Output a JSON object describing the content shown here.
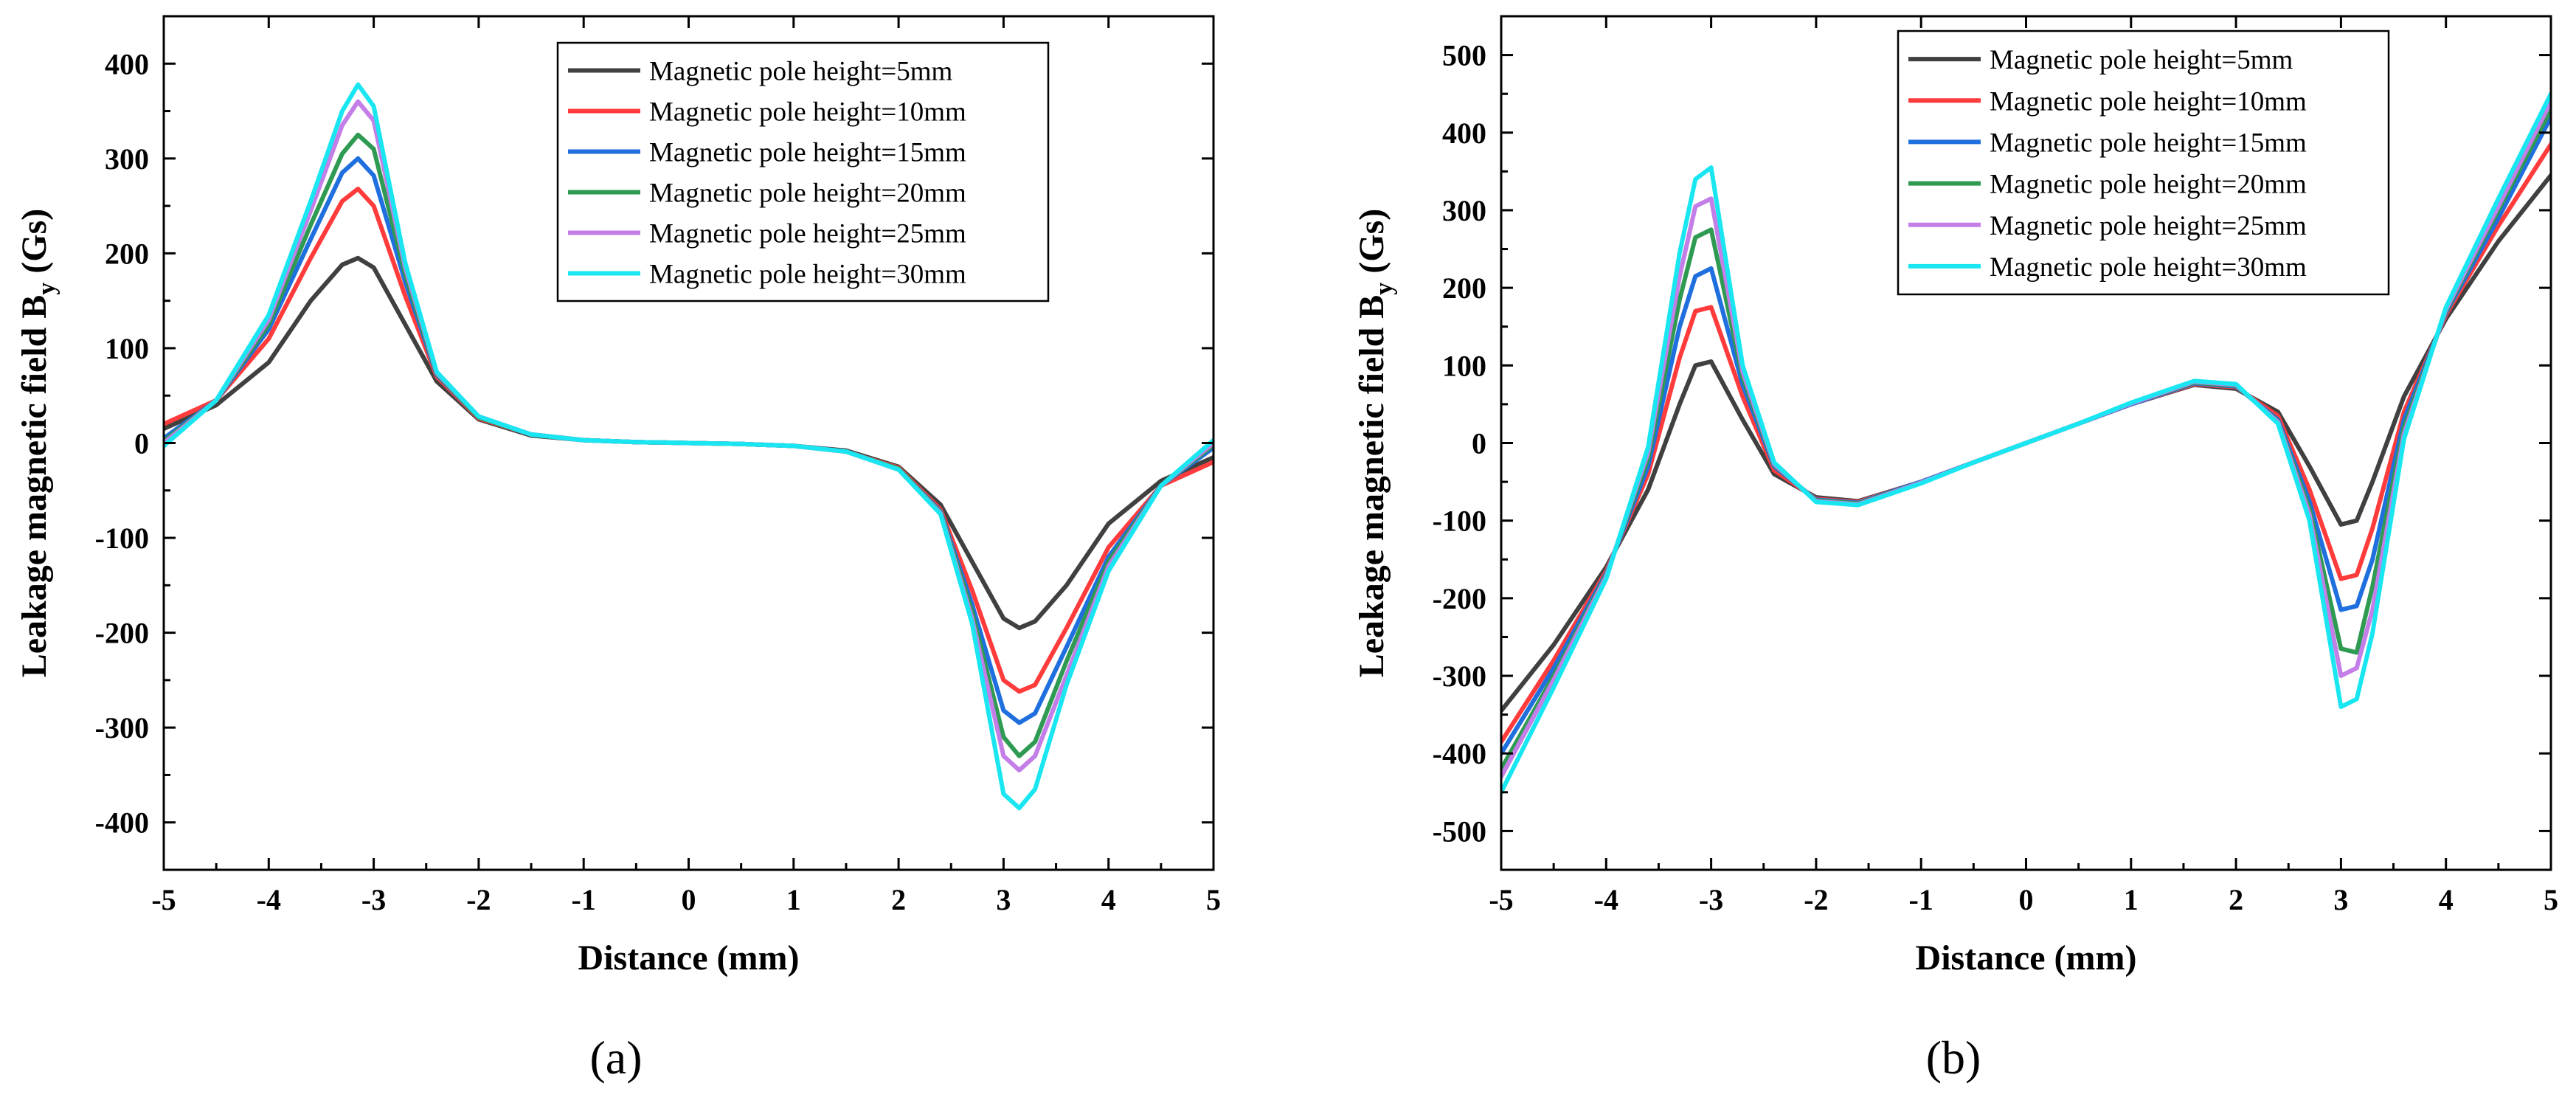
{
  "chart_data": [
    {
      "type": "line",
      "panel_label": "(a)",
      "xlabel": "Distance (mm)",
      "ylabel_main": "Leakage magnetic field B",
      "ylabel_sub": "y",
      "ylabel_unit": "(Gs)",
      "xlim": [
        -5,
        5
      ],
      "ylim": [
        -450,
        450
      ],
      "xticks": [
        -5,
        -4,
        -3,
        -2,
        -1,
        0,
        1,
        2,
        3,
        4,
        5
      ],
      "yticks": [
        -400,
        -300,
        -200,
        -100,
        0,
        100,
        200,
        300,
        400
      ],
      "legend_position": "top-right",
      "x": [
        -5,
        -4.5,
        -4,
        -3.6,
        -3.3,
        -3.15,
        -3.0,
        -2.7,
        -2.4,
        -2.0,
        -1.5,
        -1,
        -0.5,
        0,
        0.5,
        1,
        1.5,
        2.0,
        2.4,
        2.7,
        3.0,
        3.15,
        3.3,
        3.6,
        4.0,
        4.5,
        5
      ],
      "series": [
        {
          "name": "Magnetic pole height=5mm",
          "color": "#404040",
          "values": [
            15,
            40,
            85,
            150,
            188,
            195,
            185,
            125,
            65,
            25,
            8,
            3,
            1,
            0,
            -1,
            -3,
            -8,
            -25,
            -65,
            -125,
            -185,
            -195,
            -188,
            -150,
            -85,
            -40,
            -15
          ]
        },
        {
          "name": "Magnetic pole height=10mm",
          "color": "#ff3b3b",
          "values": [
            20,
            45,
            110,
            195,
            255,
            268,
            250,
            155,
            70,
            26,
            9,
            3,
            1,
            0,
            -1,
            -3,
            -9,
            -26,
            -70,
            -155,
            -250,
            -262,
            -255,
            -195,
            -110,
            -45,
            -20
          ]
        },
        {
          "name": "Magnetic pole height=15mm",
          "color": "#1f6fde",
          "values": [
            5,
            45,
            120,
            215,
            285,
            300,
            282,
            170,
            72,
            27,
            9,
            3,
            1,
            0,
            -1,
            -3,
            -9,
            -27,
            -72,
            -170,
            -282,
            -295,
            -285,
            -215,
            -120,
            -45,
            -5
          ]
        },
        {
          "name": "Magnetic pole height=20mm",
          "color": "#2e9a52",
          "values": [
            2,
            45,
            125,
            230,
            305,
            325,
            310,
            178,
            73,
            27,
            9,
            3,
            1,
            0,
            -1,
            -3,
            -9,
            -27,
            -73,
            -178,
            -310,
            -330,
            -315,
            -230,
            -125,
            -45,
            -2
          ]
        },
        {
          "name": "Magnetic pole height=25mm",
          "color": "#c37ee8",
          "values": [
            0,
            45,
            130,
            245,
            335,
            360,
            340,
            185,
            74,
            28,
            9,
            3,
            1,
            0,
            -1,
            -3,
            -9,
            -28,
            -74,
            -185,
            -330,
            -345,
            -330,
            -245,
            -130,
            -45,
            0
          ]
        },
        {
          "name": "Magnetic pole height=30mm",
          "color": "#19e6f0",
          "values": [
            -3,
            45,
            135,
            255,
            350,
            378,
            355,
            190,
            75,
            28,
            9,
            3,
            1,
            0,
            -1,
            -3,
            -9,
            -28,
            -75,
            -190,
            -370,
            -385,
            -365,
            -255,
            -135,
            -45,
            3
          ]
        }
      ]
    },
    {
      "type": "line",
      "panel_label": "(b)",
      "xlabel": "Distance (mm)",
      "ylabel_main": "Leakage magnetic field B",
      "ylabel_sub": "y",
      "ylabel_unit": "(Gs)",
      "xlim": [
        -5,
        5
      ],
      "ylim": [
        -550,
        550
      ],
      "xticks": [
        -5,
        -4,
        -3,
        -2,
        -1,
        0,
        1,
        2,
        3,
        4,
        5
      ],
      "yticks": [
        -500,
        -400,
        -300,
        -200,
        -100,
        0,
        100,
        200,
        300,
        400,
        500
      ],
      "legend_position": "top-right",
      "x": [
        -5,
        -4.5,
        -4,
        -3.6,
        -3.3,
        -3.15,
        -3.0,
        -2.7,
        -2.4,
        -2.0,
        -1.6,
        -1,
        -0.5,
        0,
        0.5,
        1,
        1.6,
        2.0,
        2.4,
        2.7,
        3.0,
        3.15,
        3.3,
        3.6,
        4.0,
        4.5,
        5
      ],
      "series": [
        {
          "name": "Magnetic pole height=5mm",
          "color": "#404040",
          "values": [
            -345,
            -260,
            -160,
            -60,
            50,
            100,
            105,
            30,
            -40,
            -70,
            -75,
            -50,
            -25,
            0,
            25,
            50,
            75,
            70,
            40,
            -30,
            -105,
            -100,
            -50,
            60,
            160,
            260,
            345
          ]
        },
        {
          "name": "Magnetic pole height=10mm",
          "color": "#ff3b3b",
          "values": [
            -385,
            -280,
            -165,
            -40,
            110,
            170,
            175,
            60,
            -35,
            -72,
            -76,
            -50,
            -25,
            0,
            25,
            50,
            76,
            72,
            35,
            -60,
            -175,
            -170,
            -110,
            40,
            165,
            280,
            385
          ]
        },
        {
          "name": "Magnetic pole height=15mm",
          "color": "#1f6fde",
          "values": [
            -400,
            -290,
            -168,
            -30,
            150,
            215,
            225,
            75,
            -30,
            -73,
            -77,
            -50,
            -25,
            0,
            25,
            50,
            77,
            73,
            30,
            -75,
            -215,
            -210,
            -150,
            30,
            168,
            290,
            420
          ]
        },
        {
          "name": "Magnetic pole height=20mm",
          "color": "#2e9a52",
          "values": [
            -420,
            -300,
            -170,
            -20,
            185,
            265,
            275,
            85,
            -28,
            -74,
            -78,
            -51,
            -25,
            0,
            25,
            51,
            78,
            74,
            28,
            -85,
            -265,
            -270,
            -185,
            20,
            170,
            300,
            430
          ]
        },
        {
          "name": "Magnetic pole height=25mm",
          "color": "#c37ee8",
          "values": [
            -430,
            -305,
            -172,
            -12,
            215,
            305,
            315,
            92,
            -27,
            -75,
            -79,
            -51,
            -25,
            0,
            25,
            51,
            79,
            75,
            27,
            -92,
            -300,
            -290,
            -215,
            12,
            172,
            305,
            440
          ]
        },
        {
          "name": "Magnetic pole height=30mm",
          "color": "#19e6f0",
          "values": [
            -450,
            -315,
            -175,
            -5,
            245,
            340,
            355,
            100,
            -25,
            -76,
            -80,
            -52,
            -25,
            0,
            25,
            52,
            80,
            76,
            25,
            -100,
            -340,
            -330,
            -245,
            5,
            175,
            315,
            450
          ]
        }
      ]
    }
  ]
}
